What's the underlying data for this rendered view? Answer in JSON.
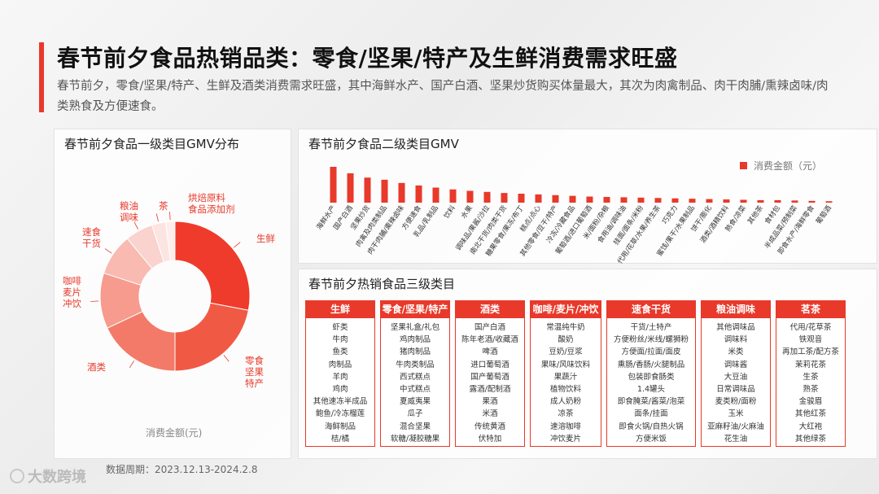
{
  "title": "春节前夕食品热销品类：零食/坚果/特产及生鲜消费需求旺盛",
  "subtitle": "春节前夕，零食/坚果/特产、生鲜及酒类消费需求旺盛，其中海鲜水产、国产白酒、坚果炒货购买体量最大，其次为肉禽制品、肉干肉脯/熏辣卤味/肉类熟食及方便速食。",
  "footer": "数据周期：2023.12.13-2024.2.8",
  "logo": "大数跨境",
  "colors": {
    "accent": "#e8392a"
  },
  "chart_data": [
    {
      "type": "pie",
      "title": "春节前夕食品一级类目GMV分布",
      "legend_caption": "消费金额(元)",
      "donut": true,
      "slices": [
        {
          "label": "生鲜",
          "value": 28,
          "color": "#ef3b2c"
        },
        {
          "label": "零食坚果特产",
          "value": 22,
          "color": "#f05a45"
        },
        {
          "label": "酒类",
          "value": 18,
          "color": "#f37a68"
        },
        {
          "label": "咖啡麦片冲饮",
          "value": 12,
          "color": "#f69b8d"
        },
        {
          "label": "速食干货",
          "value": 9,
          "color": "#f8bab1"
        },
        {
          "label": "粮油调味",
          "value": 6,
          "color": "#fad3ce"
        },
        {
          "label": "茶",
          "value": 3,
          "color": "#fce4e1"
        },
        {
          "label": "烘焙原料食品添加剂",
          "value": 2,
          "color": "#fdeeec"
        }
      ]
    },
    {
      "type": "bar",
      "title": "春节前夕食品二级类目GMV",
      "legend": [
        "消费金额（元）"
      ],
      "categories": [
        "海鲜水产",
        "国产白酒",
        "坚果炒货",
        "肉禽及肉类制品",
        "肉干肉脯/熏辣卤味",
        "方便速食",
        "乳品/乳制品",
        "饮料",
        "水果",
        "调味品/果酱/沙拉",
        "南北干货/肉类干货",
        "糖果零食/果冻/布丁",
        "糕点/点心",
        "其他零食/豆干/特产",
        "冷冻/冷藏食品",
        "葡萄酒/进口葡萄酒",
        "米/面粉/杂粮",
        "食用油/调味油",
        "挂面/面条/米粉",
        "代用/花草/水果/养生茶",
        "巧克力",
        "蜜饯/果干/水果制品",
        "饼干/膨化",
        "酒类/酒精饮料",
        "熟食/凉菜",
        "其他茶",
        "食材包",
        "半成品菜/预制菜",
        "即食水产/海鲜零食",
        "葡萄酒"
      ],
      "values": [
        100,
        82,
        70,
        64,
        55,
        48,
        42,
        37,
        33,
        30,
        27,
        25,
        23,
        21,
        19,
        17,
        16,
        15,
        14,
        13,
        12,
        11,
        10,
        9,
        8,
        7,
        7,
        6,
        5,
        4
      ],
      "ylim": [
        0,
        100
      ]
    }
  ],
  "table": {
    "title": "春节前夕热销食品三级类目",
    "columns": [
      {
        "header": "生鲜",
        "items": [
          "虾类",
          "牛肉",
          "鱼类",
          "肉制品",
          "羊肉",
          "鸡肉",
          "其他速冻半成品",
          "鲍鱼/冷冻榴莲",
          "海鲜制品",
          "桔/橘"
        ]
      },
      {
        "header": "零食/坚果/特产",
        "items": [
          "坚果礼盒/礼包",
          "鸡肉制品",
          "猪肉制品",
          "牛肉类制品",
          "西式糕点",
          "中式糕点",
          "夏威夷果",
          "瓜子",
          "混合坚果",
          "软糖/凝胶糖果"
        ]
      },
      {
        "header": "酒类",
        "items": [
          "国产白酒",
          "陈年老酒/收藏酒",
          "啤酒",
          "进口葡萄酒",
          "国产葡萄酒",
          "露酒/配制酒",
          "果酒",
          "米酒",
          "传统黄酒",
          "伏特加"
        ]
      },
      {
        "header": "咖啡/麦片/冲饮",
        "items": [
          "常温纯牛奶",
          "酸奶",
          "豆奶/豆浆",
          "果味/风味饮料",
          "果蔬汁",
          "植物饮料",
          "成人奶粉",
          "凉茶",
          "速溶咖啡",
          "冲饮麦片"
        ]
      },
      {
        "header": "速食干货",
        "items": [
          "干货/土特产",
          "方便粉丝/米线/螺狮粉",
          "方便面/拉面/面皮",
          "熏肠/香肠/火腿制品",
          "包装即食肠类",
          "1.4罐头",
          "即食腌菜/酱菜/泡菜",
          "面条/挂面",
          "即食火锅/自热火锅",
          "方便米饭"
        ]
      },
      {
        "header": "粮油调味",
        "items": [
          "其他调味品",
          "调味料",
          "米类",
          "调味酱",
          "大豆油",
          "日常调味品",
          "麦类粉/面粉",
          "玉米",
          "亚麻籽油/火麻油",
          "花生油"
        ]
      },
      {
        "header": "茗茶",
        "items": [
          "代用/花草茶",
          "铁观音",
          "再加工茶/配方茶",
          "茉莉花茶",
          "生茶",
          "熟茶",
          "金骏眉",
          "其他红茶",
          "大红袍",
          "其他绿茶"
        ]
      }
    ]
  }
}
